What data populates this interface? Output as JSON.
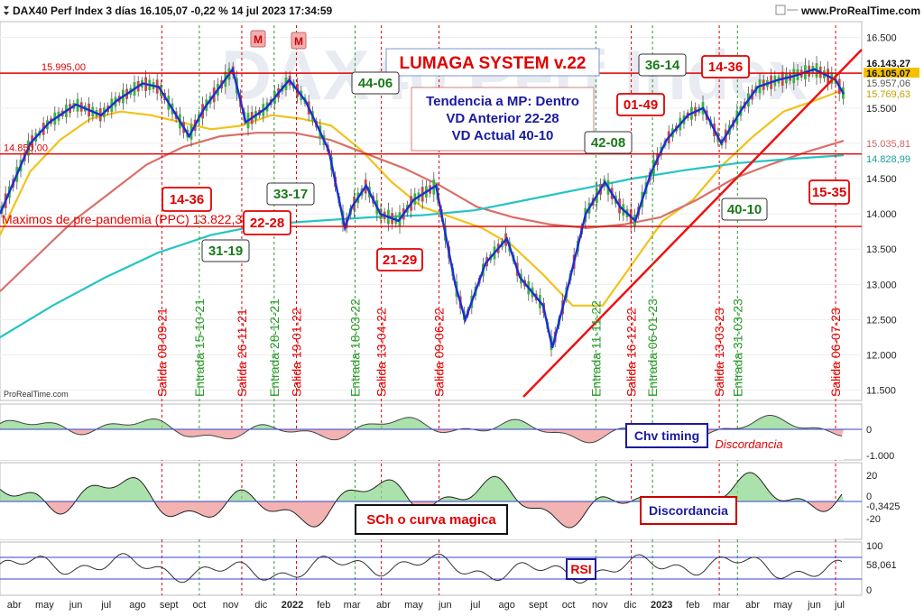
{
  "header": {
    "title": "DAX40 Perf Index 3 días 16.105,07 -0,22 % 14 jul 2023 17:34:59",
    "site": "www.ProRealTime.com",
    "watermark": "DAX40 Perf Index",
    "copyright": "ProRealTime.com"
  },
  "colors": {
    "price_line": "#1a2fd6",
    "ma_fast": "#f2c21b",
    "ma_mid": "#d9706a",
    "ma_slow": "#25c4c4",
    "red_line": "#e00000",
    "entry_green": "#2a9a2a",
    "exit_red": "#e00000"
  },
  "chart_data": [
    {
      "type": "line",
      "panel": "price",
      "title": "DAX40 Perf Index 3 días",
      "x_labels": [
        "abr",
        "may",
        "jun",
        "jul",
        "ago",
        "sept",
        "oct",
        "nov",
        "dic",
        "2022",
        "feb",
        "mar",
        "abr",
        "may",
        "jun",
        "jul",
        "ago",
        "sept",
        "oct",
        "nov",
        "dic",
        "2023",
        "feb",
        "mar",
        "abr",
        "may",
        "jun",
        "jul"
      ],
      "x_start": "2021-04-01",
      "x_end": "2023-07-14",
      "y_ticks": [
        11500,
        12000,
        12500,
        13000,
        13500,
        14000,
        14500,
        15000,
        15500,
        16000,
        16500
      ],
      "ylim": [
        11380,
        16700
      ],
      "series": [
        {
          "x": [
            "2021-04-01",
            "2021-05-01",
            "2021-05-20",
            "2021-06-15",
            "2021-07-10",
            "2021-07-25",
            "2021-08-20",
            "2021-09-05",
            "2021-10-05",
            "2021-10-20",
            "2021-11-17",
            "2021-11-30",
            "2021-12-20",
            "2022-01-12",
            "2022-01-28",
            "2022-02-20",
            "2022-03-08",
            "2022-03-15",
            "2022-03-29",
            "2022-04-12",
            "2022-04-30",
            "2022-05-15",
            "2022-06-06",
            "2022-06-25",
            "2022-07-05",
            "2022-07-25",
            "2022-08-15",
            "2022-08-28",
            "2022-09-20",
            "2022-09-29",
            "2022-10-15",
            "2022-11-01",
            "2022-11-20",
            "2022-12-05",
            "2022-12-20",
            "2023-01-05",
            "2023-01-20",
            "2023-02-10",
            "2023-02-25",
            "2023-03-15",
            "2023-04-05",
            "2023-04-20",
            "2023-05-10",
            "2023-05-25",
            "2023-06-15",
            "2023-07-06",
            "2023-07-14"
          ],
          "values": [
            14000,
            15000,
            15300,
            15550,
            15400,
            15600,
            15850,
            15800,
            15100,
            15500,
            16050,
            15300,
            15500,
            15900,
            15600,
            14900,
            13800,
            14100,
            14400,
            14000,
            13900,
            14200,
            14400,
            13000,
            12500,
            13300,
            13650,
            13100,
            12700,
            12100,
            13000,
            14000,
            14450,
            14100,
            13900,
            14600,
            15050,
            15400,
            15500,
            15000,
            15500,
            15800,
            15900,
            15950,
            16050,
            15900,
            15700
          ]
        }
      ],
      "moving_averages": [
        {
          "values": [
            13700,
            14600,
            15050,
            15350,
            15450,
            15400,
            15300,
            15200,
            15250,
            15400,
            15350,
            15250,
            14900,
            14450,
            14100,
            13950,
            13800,
            13550,
            13150,
            12700,
            12700,
            13300,
            13900,
            14200,
            14700,
            15100,
            15450,
            15600,
            15760
          ]
        },
        {
          "values": [
            12900,
            13400,
            13900,
            14300,
            14700,
            14950,
            15100,
            15150,
            15150,
            15050,
            14850,
            14650,
            14400,
            14100,
            13950,
            13850,
            13800,
            13850,
            13950,
            14200,
            14500,
            14700,
            14880,
            15036
          ]
        },
        {
          "values": [
            12250,
            12700,
            13100,
            13450,
            13700,
            13850,
            13900,
            13950,
            13980,
            14050,
            14200,
            14350,
            14500,
            14620,
            14720,
            14780,
            14830
          ]
        }
      ],
      "levels": [
        {
          "label": "15.995,00",
          "value": 15995
        },
        {
          "label": "14.850,00",
          "value": 14850
        },
        {
          "label": "Maximos de pre-pandemia (PPC) 13.822,38",
          "value": 13822
        }
      ],
      "price_labels": [
        "16.143,27",
        "16.105,07",
        "15.957,06",
        "15.769,63",
        "15.035,81",
        "14.828,99"
      ],
      "signals": [
        {
          "label": "Salida 08-09-21",
          "kind": "exit",
          "date": "2021-09-08"
        },
        {
          "label": "Entrada 15-10-21",
          "kind": "entry",
          "date": "2021-10-15"
        },
        {
          "label": "Salida 26-11-21",
          "kind": "exit",
          "date": "2021-11-26"
        },
        {
          "label": "Entrada 28-12-21",
          "kind": "entry",
          "date": "2021-12-28"
        },
        {
          "label": "Salida 19-01-22",
          "kind": "exit",
          "date": "2022-01-19"
        },
        {
          "label": "Entrada 18-03-22",
          "kind": "entry",
          "date": "2022-03-18"
        },
        {
          "label": "Salida 13-04-22",
          "kind": "exit",
          "date": "2022-04-13"
        },
        {
          "label": "Salida 09-06-22",
          "kind": "exit",
          "date": "2022-06-09"
        },
        {
          "label": "Entrada 11-11-22",
          "kind": "entry",
          "date": "2022-11-11"
        },
        {
          "label": "Salida 16-12-22",
          "kind": "exit",
          "date": "2022-12-16"
        },
        {
          "label": "Entrada 06-01-23",
          "kind": "entry",
          "date": "2023-01-06"
        },
        {
          "label": "Salida 13-03-23",
          "kind": "exit",
          "date": "2023-03-13"
        },
        {
          "label": "Entrada 31-03-23",
          "kind": "entry",
          "date": "2023-03-31"
        },
        {
          "label": "Salida 06-07-23",
          "kind": "exit",
          "date": "2023-07-06"
        }
      ],
      "annotations": {
        "system_title": "LUMAGA SYSTEM v.22",
        "trend_lines": [
          "Tendencia a MP: Dentro",
          "VD Anterior 22-28",
          "VD Actual 40-10"
        ],
        "boxes": [
          {
            "text": "44-06",
            "color": "green"
          },
          {
            "text": "36-14",
            "color": "green"
          },
          {
            "text": "14-36",
            "color": "red"
          },
          {
            "text": "01-49",
            "color": "red"
          },
          {
            "text": "42-08",
            "color": "green"
          },
          {
            "text": "33-17",
            "color": "green"
          },
          {
            "text": "14-36",
            "color": "red"
          },
          {
            "text": "22-28",
            "color": "red"
          },
          {
            "text": "31-19",
            "color": "green"
          },
          {
            "text": "21-29",
            "color": "red"
          },
          {
            "text": "40-10",
            "color": "green"
          },
          {
            "text": "15-35",
            "color": "red"
          }
        ],
        "markers": [
          "M",
          "M"
        ]
      }
    },
    {
      "type": "area",
      "panel": "chv",
      "title": "Chv timing",
      "annotation": "Discordancia",
      "y_ticks": [
        "0",
        "-1.000"
      ]
    },
    {
      "type": "area",
      "panel": "sch",
      "title": "SCh o curva magica",
      "annotation": "Discordancia",
      "y_ticks": [
        "20",
        "0",
        "-20"
      ],
      "last_value": "-0,3425"
    },
    {
      "type": "area",
      "panel": "rsi",
      "title": "RSI",
      "y_ticks": [
        "100",
        "0"
      ],
      "last_value": "58,061"
    }
  ]
}
